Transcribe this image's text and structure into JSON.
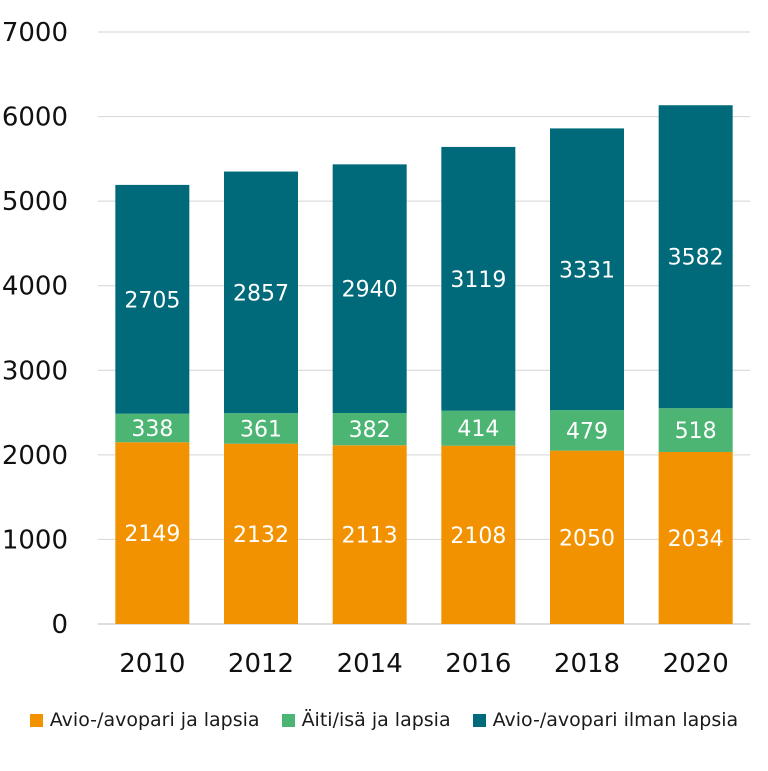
{
  "chart_data": {
    "type": "bar",
    "stacked": true,
    "categories": [
      "2010",
      "2012",
      "2014",
      "2016",
      "2018",
      "2020"
    ],
    "series": [
      {
        "name": "Avio-/avopari ja lapsia",
        "color": "#F39200",
        "values": [
          2149,
          2132,
          2113,
          2108,
          2050,
          2034
        ]
      },
      {
        "name": "Äiti/isä ja lapsia",
        "color": "#4CB574",
        "values": [
          338,
          361,
          382,
          414,
          479,
          518
        ]
      },
      {
        "name": "Avio-/avopari ilman lapsia",
        "color": "#006A7A",
        "values": [
          2705,
          2857,
          2940,
          3119,
          3331,
          3582
        ]
      }
    ],
    "title": "",
    "xlabel": "",
    "ylabel": "",
    "ylim": [
      0,
      7000
    ],
    "yticks": [
      "0",
      "1000",
      "2000",
      "3000",
      "4000",
      "5000",
      "6000",
      "7000"
    ],
    "grid": true,
    "legend": "bottom",
    "data_labels": true
  }
}
